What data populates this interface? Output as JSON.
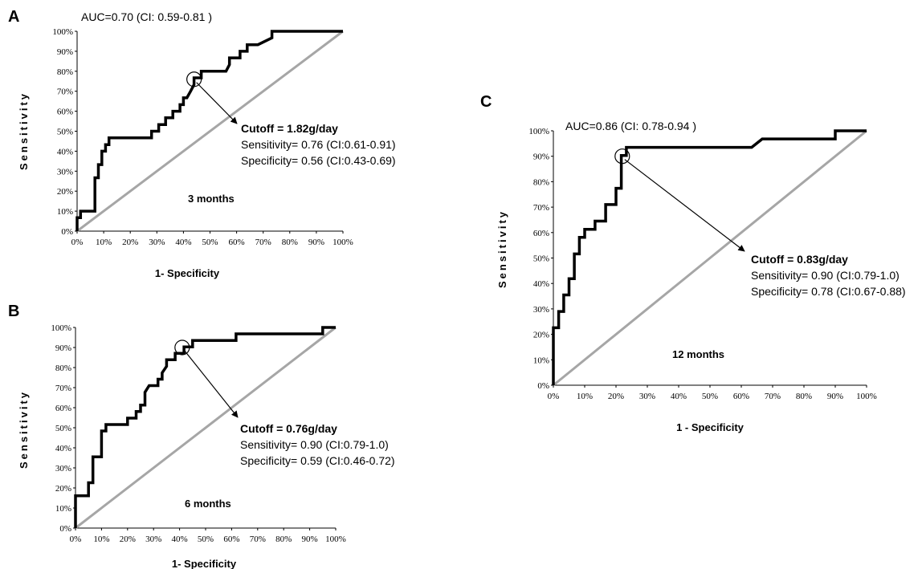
{
  "chart_data": [
    {
      "panel": "A",
      "type": "line",
      "auc_text": "AUC=0.70 (CI: 0.59-0.81 )",
      "cutoff_text": "Cutoff = 1.82g/day",
      "sensitivity_text": "Sensitivity= 0.76 (CI:0.61-0.91)",
      "specificity_text": "Specificity= 0.56 (CI:0.43-0.69)",
      "period": "3 months",
      "xlabel": "1- Specificity",
      "ylabel": "Sensitivity",
      "x_ticks": [
        "0%",
        "10%",
        "20%",
        "30%",
        "40%",
        "50%",
        "60%",
        "70%",
        "80%",
        "90%",
        "100%"
      ],
      "y_ticks": [
        "0%",
        "10%",
        "20%",
        "30%",
        "40%",
        "50%",
        "60%",
        "70%",
        "80%",
        "90%",
        "100%"
      ],
      "xlim": [
        0,
        1
      ],
      "ylim": [
        0,
        1
      ],
      "cutoff_point": [
        0.44,
        0.76
      ],
      "roc": [
        [
          0,
          0
        ],
        [
          0,
          0.067
        ],
        [
          0.013,
          0.067
        ],
        [
          0.013,
          0.1
        ],
        [
          0.067,
          0.1
        ],
        [
          0.067,
          0.267
        ],
        [
          0.08,
          0.267
        ],
        [
          0.08,
          0.333
        ],
        [
          0.093,
          0.333
        ],
        [
          0.093,
          0.4
        ],
        [
          0.107,
          0.4
        ],
        [
          0.107,
          0.433
        ],
        [
          0.12,
          0.433
        ],
        [
          0.12,
          0.467
        ],
        [
          0.147,
          0.467
        ],
        [
          0.16,
          0.467
        ],
        [
          0.28,
          0.467
        ],
        [
          0.28,
          0.5
        ],
        [
          0.307,
          0.5
        ],
        [
          0.307,
          0.533
        ],
        [
          0.333,
          0.533
        ],
        [
          0.333,
          0.567
        ],
        [
          0.36,
          0.567
        ],
        [
          0.36,
          0.6
        ],
        [
          0.387,
          0.6
        ],
        [
          0.387,
          0.633
        ],
        [
          0.4,
          0.633
        ],
        [
          0.4,
          0.667
        ],
        [
          0.413,
          0.667
        ],
        [
          0.427,
          0.7
        ],
        [
          0.44,
          0.733
        ],
        [
          0.44,
          0.767
        ],
        [
          0.467,
          0.767
        ],
        [
          0.467,
          0.8
        ],
        [
          0.56,
          0.8
        ],
        [
          0.573,
          0.833
        ],
        [
          0.573,
          0.867
        ],
        [
          0.613,
          0.867
        ],
        [
          0.613,
          0.9
        ],
        [
          0.64,
          0.9
        ],
        [
          0.64,
          0.933
        ],
        [
          0.68,
          0.933
        ],
        [
          0.733,
          0.967
        ],
        [
          0.733,
          1
        ],
        [
          1,
          1
        ]
      ]
    },
    {
      "panel": "B",
      "type": "line",
      "cutoff_text": "Cutoff = 0.76g/day",
      "sensitivity_text": "Sensitivity= 0.90 (CI:0.79-1.0)",
      "specificity_text": "Specificity= 0.59 (CI:0.46-0.72)",
      "period": "6 months",
      "xlabel": "1- Specificity",
      "ylabel": "Sensitivity",
      "x_ticks": [
        "0%",
        "10%",
        "20%",
        "30%",
        "40%",
        "50%",
        "60%",
        "70%",
        "80%",
        "90%",
        "100%"
      ],
      "y_ticks": [
        "0%",
        "10%",
        "20%",
        "30%",
        "40%",
        "50%",
        "60%",
        "70%",
        "80%",
        "90%",
        "100%"
      ],
      "xlim": [
        0,
        1
      ],
      "ylim": [
        0,
        1
      ],
      "cutoff_point": [
        0.41,
        0.9
      ],
      "roc": [
        [
          0,
          0
        ],
        [
          0,
          0.161
        ],
        [
          0.05,
          0.161
        ],
        [
          0.05,
          0.226
        ],
        [
          0.067,
          0.226
        ],
        [
          0.067,
          0.355
        ],
        [
          0.1,
          0.355
        ],
        [
          0.1,
          0.484
        ],
        [
          0.117,
          0.484
        ],
        [
          0.117,
          0.516
        ],
        [
          0.2,
          0.516
        ],
        [
          0.2,
          0.548
        ],
        [
          0.233,
          0.548
        ],
        [
          0.233,
          0.581
        ],
        [
          0.25,
          0.581
        ],
        [
          0.25,
          0.613
        ],
        [
          0.267,
          0.613
        ],
        [
          0.267,
          0.677
        ],
        [
          0.283,
          0.71
        ],
        [
          0.317,
          0.71
        ],
        [
          0.317,
          0.742
        ],
        [
          0.333,
          0.742
        ],
        [
          0.333,
          0.774
        ],
        [
          0.35,
          0.806
        ],
        [
          0.35,
          0.839
        ],
        [
          0.383,
          0.839
        ],
        [
          0.383,
          0.871
        ],
        [
          0.417,
          0.871
        ],
        [
          0.417,
          0.903
        ],
        [
          0.45,
          0.903
        ],
        [
          0.45,
          0.935
        ],
        [
          0.6,
          0.935
        ],
        [
          0.617,
          0.935
        ],
        [
          0.617,
          0.968
        ],
        [
          0.95,
          0.968
        ],
        [
          0.95,
          1
        ],
        [
          1,
          1
        ]
      ]
    },
    {
      "panel": "C",
      "type": "line",
      "auc_text": "AUC=0.86 (CI: 0.78-0.94 )",
      "cutoff_text": "Cutoff = 0.83g/day",
      "sensitivity_text": "Sensitivity= 0.90 (CI:0.79-1.0)",
      "specificity_text": "Specificity= 0.78 (CI:0.67-0.88)",
      "period": "12 months",
      "xlabel": "1 - Specificity",
      "ylabel": "Sensitivity",
      "x_ticks": [
        "0%",
        "10%",
        "20%",
        "30%",
        "40%",
        "50%",
        "60%",
        "70%",
        "80%",
        "90%",
        "100%"
      ],
      "y_ticks": [
        "0%",
        "10%",
        "20%",
        "30%",
        "40%",
        "50%",
        "60%",
        "70%",
        "80%",
        "90%",
        "100%"
      ],
      "xlim": [
        0,
        1
      ],
      "ylim": [
        0,
        1
      ],
      "cutoff_point": [
        0.22,
        0.9
      ],
      "roc": [
        [
          0,
          0
        ],
        [
          0,
          0.226
        ],
        [
          0.017,
          0.226
        ],
        [
          0.017,
          0.29
        ],
        [
          0.033,
          0.29
        ],
        [
          0.033,
          0.355
        ],
        [
          0.05,
          0.355
        ],
        [
          0.05,
          0.419
        ],
        [
          0.067,
          0.419
        ],
        [
          0.067,
          0.516
        ],
        [
          0.083,
          0.516
        ],
        [
          0.083,
          0.581
        ],
        [
          0.1,
          0.581
        ],
        [
          0.1,
          0.613
        ],
        [
          0.133,
          0.613
        ],
        [
          0.133,
          0.645
        ],
        [
          0.167,
          0.645
        ],
        [
          0.167,
          0.71
        ],
        [
          0.2,
          0.71
        ],
        [
          0.2,
          0.774
        ],
        [
          0.217,
          0.774
        ],
        [
          0.217,
          0.839
        ],
        [
          0.217,
          0.903
        ],
        [
          0.233,
          0.903
        ],
        [
          0.233,
          0.935
        ],
        [
          0.633,
          0.935
        ],
        [
          0.667,
          0.968
        ],
        [
          0.9,
          0.968
        ],
        [
          0.9,
          1
        ],
        [
          1,
          1
        ]
      ]
    }
  ]
}
